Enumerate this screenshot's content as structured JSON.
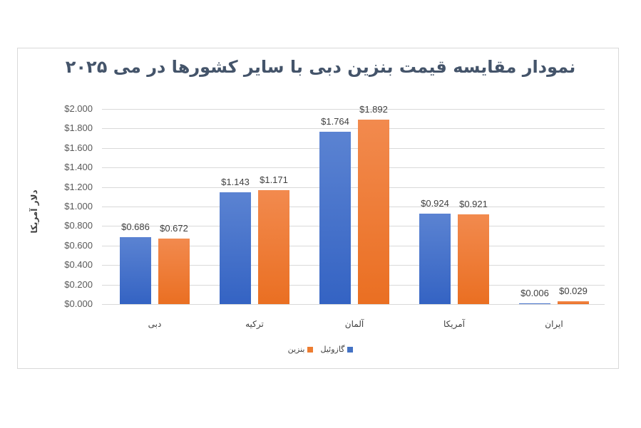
{
  "chart_data": {
    "type": "bar",
    "title": "نمودار مقایسه قیمت بنزین دبی با سایر کشورها در می ۲۰۲۵",
    "xlabel": "",
    "ylabel": "دلار آمریکا",
    "ylim": [
      0,
      2.0
    ],
    "yticks": [
      "$0.000",
      "$0.200",
      "$0.400",
      "$0.600",
      "$0.800",
      "$1.000",
      "$1.200",
      "$1.400",
      "$1.600",
      "$1.800",
      "$2.000"
    ],
    "grid": true,
    "legend_position": "bottom",
    "categories": [
      "دبی",
      "ترکیه",
      "آلمان",
      "آمریکا",
      "ایران"
    ],
    "series": [
      {
        "name": "گازوئیل",
        "color": "#4472c4",
        "values": [
          0.686,
          1.143,
          1.764,
          0.924,
          0.006
        ],
        "labels": [
          "$0.686",
          "$1.143",
          "$1.764",
          "$0.924",
          "$0.006"
        ]
      },
      {
        "name": "بنزین",
        "color": "#ed7d31",
        "values": [
          0.672,
          1.171,
          1.892,
          0.921,
          0.029
        ],
        "labels": [
          "$0.672",
          "$1.171",
          "$1.892",
          "$0.921",
          "$0.029"
        ]
      }
    ]
  }
}
